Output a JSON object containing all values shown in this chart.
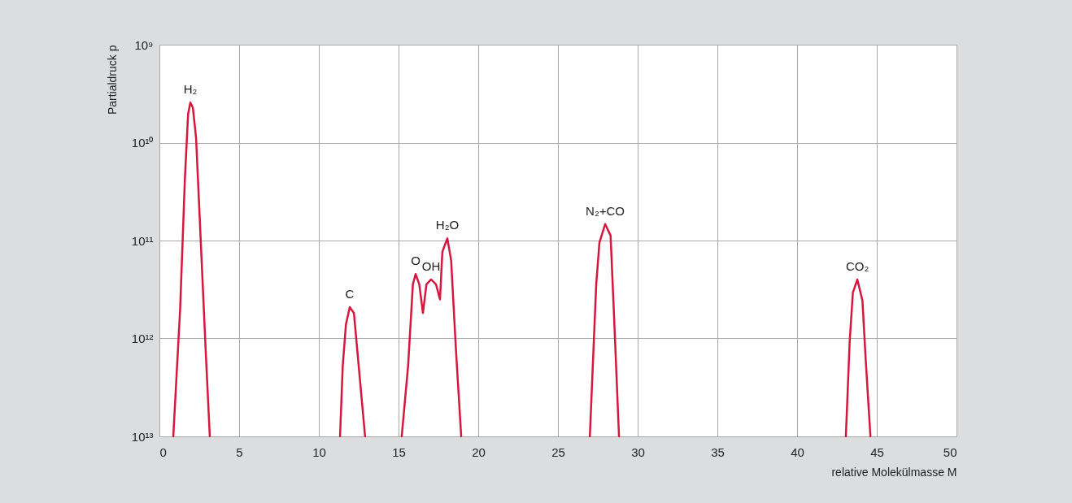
{
  "chart_data": {
    "type": "line",
    "xlabel": "relative Molekülmasse M",
    "ylabel": "Partialdruck p",
    "log": "y",
    "grid": true,
    "marker": "none",
    "line_style": "solid",
    "xlim": [
      0,
      50
    ],
    "xticks": [
      0,
      5,
      10,
      15,
      20,
      25,
      30,
      35,
      40,
      45,
      50
    ],
    "ylim": [
      10000000000000.0,
      1000000000.0
    ],
    "yticks": [
      {
        "value": 1000000000.0,
        "label": "10⁹"
      },
      {
        "value": 10000000000.0,
        "label": "10¹⁰"
      },
      {
        "value": 100000000000.0,
        "label": "10¹¹"
      },
      {
        "value": 1000000000000.0,
        "label": "10¹²"
      },
      {
        "value": 10000000000000.0,
        "label": "10¹³"
      }
    ],
    "series": [
      {
        "color": "#d6173e",
        "x": [
          0.87,
          1.3,
          1.6,
          1.8,
          1.94,
          2.1,
          2.3,
          2.6,
          2.9,
          3.16,
          7,
          11.33,
          11.5,
          11.7,
          11.94,
          12.2,
          12.5,
          12.9,
          14,
          15.2,
          15.6,
          15.9,
          16.07,
          16.3,
          16.53,
          16.75,
          17.04,
          17.35,
          17.6,
          17.75,
          18.06,
          18.3,
          18.6,
          18.93,
          23,
          27.0,
          27.4,
          27.6,
          27.96,
          28.3,
          28.5,
          28.83,
          35,
          43.06,
          43.3,
          43.5,
          43.78,
          44.1,
          44.3,
          44.6
        ],
        "values": [
          10000000000000.0,
          500000000000.0,
          23000000000.0,
          5100000000.0,
          3900000000.0,
          4400000000.0,
          9000000000.0,
          107000000000.0,
          1300000000000.0,
          10000000000000.0,
          null,
          10000000000000.0,
          1900000000000.0,
          720000000000.0,
          480000000000.0,
          550000000000.0,
          1900000000000.0,
          10000000000000.0,
          null,
          10000000000000.0,
          1900000000000.0,
          280000000000.0,
          220000000000.0,
          280000000000.0,
          550000000000.0,
          280000000000.0,
          250000000000.0,
          280000000000.0,
          400000000000.0,
          130000000000.0,
          95000000000.0,
          160000000000.0,
          1300000000000.0,
          10000000000000.0,
          null,
          10000000000000.0,
          280000000000.0,
          105000000000.0,
          68000000000.0,
          89000000000.0,
          500000000000.0,
          10000000000000.0,
          null,
          10000000000000.0,
          1070000000000.0,
          340000000000.0,
          250000000000.0,
          410000000000.0,
          1600000000000.0,
          10000000000000.0
        ]
      }
    ],
    "annotations": [
      {
        "text": "H₂",
        "x": 1.94,
        "y": 3900000000.0
      },
      {
        "text": "C",
        "x": 11.94,
        "y": 480000000000.0
      },
      {
        "text": "O",
        "x": 16.07,
        "y": 220000000000.0
      },
      {
        "text": "OH",
        "x": 17.04,
        "y": 250000000000.0
      },
      {
        "text": "H₂O",
        "x": 18.06,
        "y": 95000000000.0
      },
      {
        "text": "N₂+CO",
        "x": 27.96,
        "y": 68000000000.0
      },
      {
        "text": "CO₂",
        "x": 43.78,
        "y": 250000000000.0
      }
    ]
  }
}
